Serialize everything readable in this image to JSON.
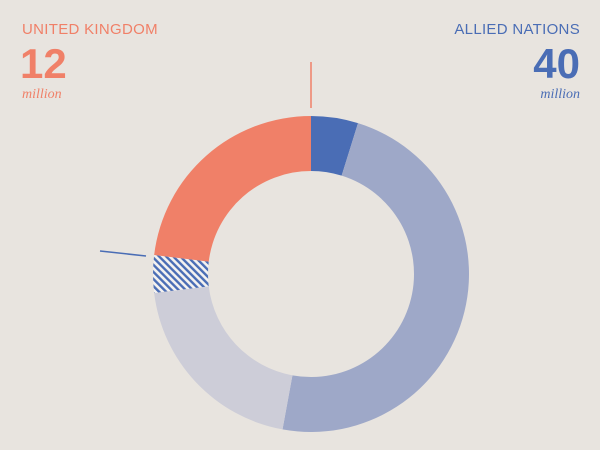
{
  "chart_data": {
    "type": "donut",
    "annotations": [
      {
        "label": "UNITED KINGDOM",
        "value": 12,
        "unit": "million",
        "color": "#f08068"
      },
      {
        "label": "ALLIED NATIONS",
        "value": 40,
        "unit": "million",
        "color": "#4a6db5"
      }
    ],
    "categories": [
      null,
      null,
      null,
      null,
      null
    ],
    "values": [
      2.5,
      25,
      10.5,
      2,
      12
    ],
    "colors": [
      "#4a6db5",
      "#9ea8c8",
      "#cdcdd8",
      "#4a6db5",
      "#f08068"
    ],
    "hatched": [
      false,
      false,
      false,
      true,
      false
    ]
  }
}
